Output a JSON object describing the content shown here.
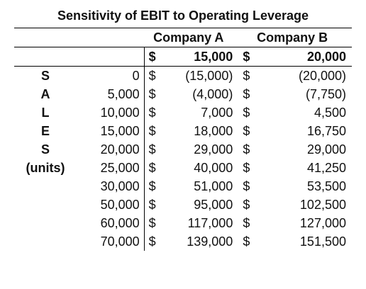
{
  "title": "Sensitivity of EBIT to Operating Leverage",
  "headers": {
    "company_a": "Company A",
    "company_b": "Company B"
  },
  "fixed_costs_row": {
    "dollar": "$",
    "a": "15,000",
    "b": "20,000"
  },
  "side_labels": [
    "S",
    "A",
    "L",
    "E",
    "S",
    "(units)"
  ],
  "rows": [
    {
      "units": "0",
      "a": "(15,000)",
      "b": "(20,000)"
    },
    {
      "units": "5,000",
      "a": "(4,000)",
      "b": "(7,750)"
    },
    {
      "units": "10,000",
      "a": "7,000",
      "b": "4,500"
    },
    {
      "units": "15,000",
      "a": "18,000",
      "b": "16,750"
    },
    {
      "units": "20,000",
      "a": "29,000",
      "b": "29,000"
    },
    {
      "units": "25,000",
      "a": "40,000",
      "b": "41,250"
    },
    {
      "units": "30,000",
      "a": "51,000",
      "b": "53,500"
    },
    {
      "units": "50,000",
      "a": "95,000",
      "b": "102,500"
    },
    {
      "units": "60,000",
      "a": "117,000",
      "b": "127,000"
    },
    {
      "units": "70,000",
      "a": "139,000",
      "b": "151,500"
    }
  ]
}
